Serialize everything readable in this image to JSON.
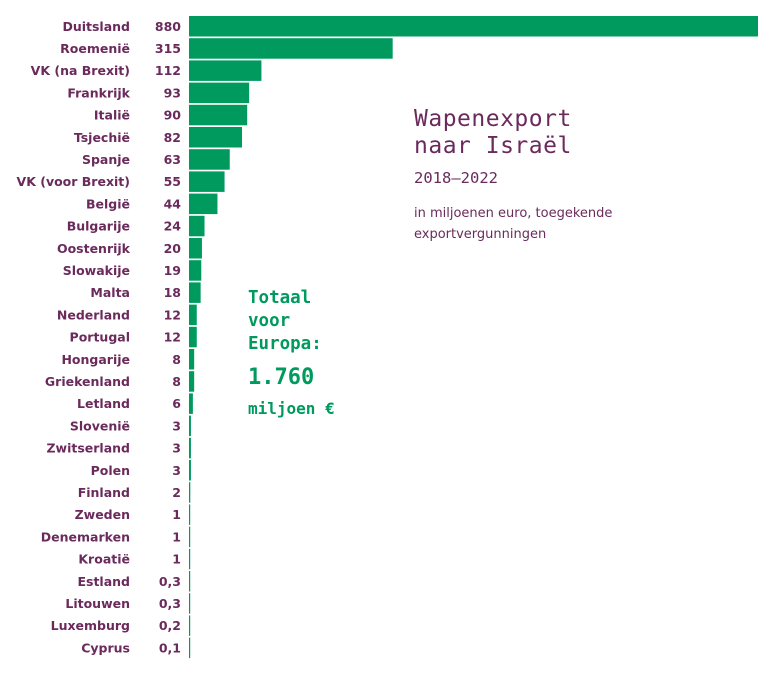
{
  "title_lines": [
    "Wapenexport",
    "naar Israël"
  ],
  "years": "2018–2022",
  "subtitle": "in miljoenen euro, toegekende exportvergunningen",
  "total": {
    "label_lines": [
      "Totaal",
      "voor",
      "Europa:"
    ],
    "value": "1.760",
    "unit": "miljoen €"
  },
  "colors": {
    "bar": "#009a5e",
    "text": "#6b2a5c",
    "accent": "#009a5e"
  },
  "chart_data": {
    "type": "bar",
    "orientation": "horizontal",
    "categories": [
      "Duitsland",
      "Roemenië",
      "VK (na Brexit)",
      "Frankrijk",
      "Italië",
      "Tsjechië",
      "Spanje",
      "VK (voor Brexit)",
      "België",
      "Bulgarije",
      "Oostenrijk",
      "Slowakije",
      "Malta",
      "Nederland",
      "Portugal",
      "Hongarije",
      "Griekenland",
      "Letland",
      "Slovenië",
      "Zwitserland",
      "Polen",
      "Finland",
      "Zweden",
      "Denemarken",
      "Kroatië",
      "Estland",
      "Litouwen",
      "Luxemburg",
      "Cyprus"
    ],
    "values": [
      880,
      315,
      112,
      93,
      90,
      82,
      63,
      55,
      44,
      24,
      20,
      19,
      18,
      12,
      12,
      8,
      8,
      6,
      3,
      3,
      3,
      2,
      1,
      1,
      1,
      0.3,
      0.3,
      0.2,
      0.1
    ],
    "value_labels": [
      "880",
      "315",
      "112",
      "93",
      "90",
      "82",
      "63",
      "55",
      "44",
      "24",
      "20",
      "19",
      "18",
      "12",
      "12",
      "8",
      "8",
      "6",
      "3",
      "3",
      "3",
      "2",
      "1",
      "1",
      "1",
      "0,3",
      "0,3",
      "0,2",
      "0,1"
    ],
    "xlim": [
      0,
      880
    ]
  }
}
